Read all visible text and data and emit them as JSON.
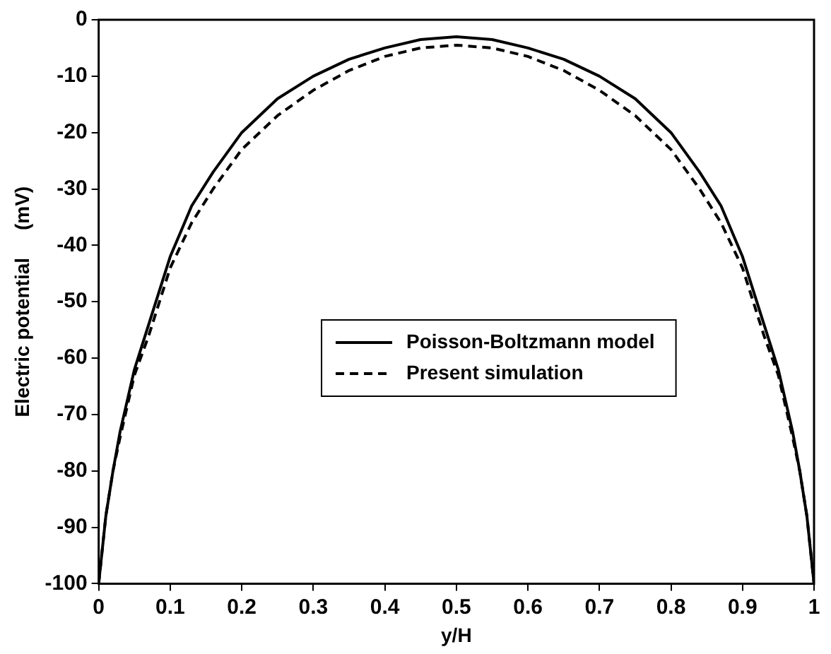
{
  "chart_data": {
    "type": "line",
    "xlabel": "y/H",
    "ylabel": "Electric potential     (mV)",
    "x": [
      0,
      0.01,
      0.02,
      0.03,
      0.05,
      0.07,
      0.1,
      0.13,
      0.16,
      0.2,
      0.25,
      0.3,
      0.35,
      0.4,
      0.45,
      0.5,
      0.55,
      0.6,
      0.65,
      0.7,
      0.75,
      0.8,
      0.84,
      0.87,
      0.9,
      0.93,
      0.95,
      0.97,
      0.98,
      0.99,
      1
    ],
    "series": [
      {
        "name": "Poisson-Boltzmann model",
        "color": "#000000",
        "line_style": "solid",
        "values": [
          -100,
          -88,
          -80,
          -73,
          -62,
          -54,
          -42,
          -33,
          -27,
          -20,
          -14,
          -10,
          -7,
          -5,
          -3.5,
          -3,
          -3.5,
          -5,
          -7,
          -10,
          -14,
          -20,
          -27,
          -33,
          -42,
          -54,
          -62,
          -73,
          -80,
          -88,
          -100
        ]
      },
      {
        "name": "Present simulation",
        "color": "#000000",
        "line_style": "dashed",
        "values": [
          -100,
          -88,
          -80,
          -74,
          -63,
          -56,
          -44,
          -36,
          -30,
          -23,
          -17,
          -12.5,
          -9,
          -6.5,
          -5,
          -4.5,
          -5,
          -6.5,
          -9,
          -12.5,
          -17,
          -23,
          -30,
          -36,
          -44,
          -56,
          -63,
          -74,
          -80,
          -88,
          -100
        ]
      }
    ],
    "xlim": [
      0,
      1
    ],
    "xticks": [
      0,
      0.1,
      0.2,
      0.3,
      0.4,
      0.5,
      0.6,
      0.7,
      0.8,
      0.9,
      1
    ],
    "ylim": [
      -100,
      0
    ],
    "yticks": [
      -100,
      -90,
      -80,
      -70,
      -60,
      -50,
      -40,
      -30,
      -20,
      -10,
      0
    ],
    "grid": false,
    "legend": "center",
    "marker": "none"
  }
}
